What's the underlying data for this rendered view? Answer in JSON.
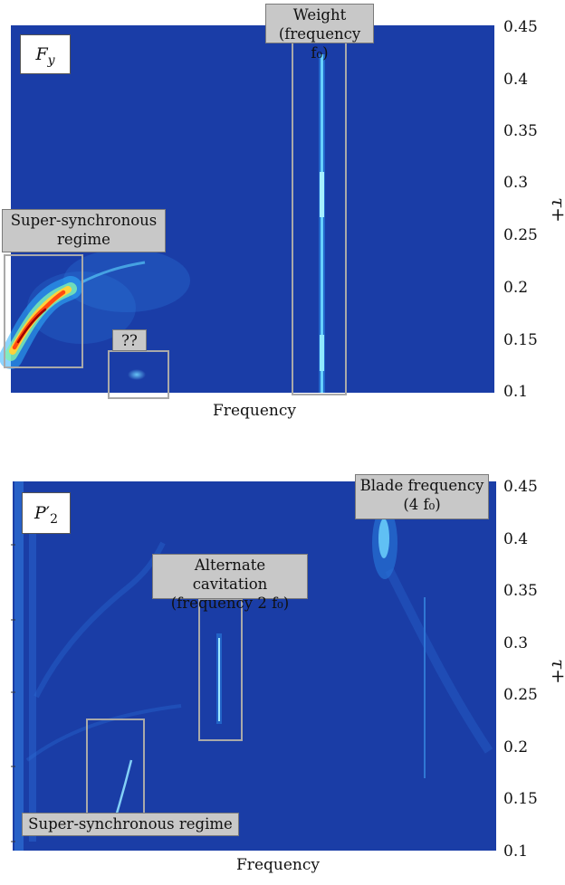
{
  "chart_data": [
    {
      "type": "heatmap",
      "panel_label": "F_y",
      "xlabel": "Frequency",
      "ylabel": "τ+",
      "ylim": [
        0.1,
        0.45
      ],
      "yticks": [
        "0.1",
        "0.15",
        "0.2",
        "0.25",
        "0.3",
        "0.35",
        "0.4",
        "0.45"
      ],
      "colormap": [
        "#142a8c",
        "#1e50c8",
        "#2fa0f0",
        "#66e0ff",
        "#ffe040",
        "#ff5a10",
        "#a00000"
      ],
      "annotations": [
        {
          "lines": [
            "Weight",
            "(frequency f₀)"
          ]
        },
        {
          "lines": [
            "Super-synchronous",
            "regime"
          ]
        },
        {
          "lines": [
            "??"
          ]
        }
      ]
    },
    {
      "type": "heatmap",
      "panel_label": "P′₂",
      "xlabel": "Frequency",
      "ylabel": "τ+",
      "ylim": [
        0.1,
        0.45
      ],
      "yticks": [
        "0.1",
        "0.15",
        "0.2",
        "0.25",
        "0.3",
        "0.35",
        "0.4",
        "0.45"
      ],
      "colormap": [
        "#142a8c",
        "#1e50c8",
        "#2fa0f0",
        "#66e0ff"
      ],
      "annotations": [
        {
          "lines": [
            "Blade frequency",
            "(4 f₀)"
          ]
        },
        {
          "lines": [
            "Alternate cavitation",
            "(frequency 2 f₀)"
          ]
        },
        {
          "lines": [
            "Super-synchronous regime"
          ]
        }
      ]
    }
  ]
}
